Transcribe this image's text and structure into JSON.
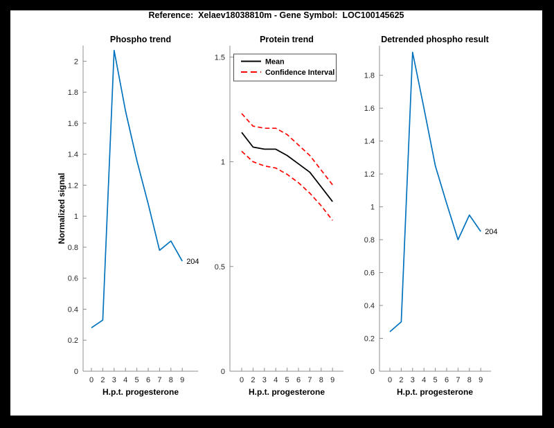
{
  "figure": {
    "title": "Reference:  Xelaev18038810m - Gene Symbol:  LOC100145625",
    "frame_color": "#000000",
    "background": "#ffffff"
  },
  "colors": {
    "line_blue": "#0072BD",
    "ci_red": "#FF0000",
    "mean_black": "#000000"
  },
  "chart_data": [
    {
      "type": "line",
      "title": "Phospho trend",
      "xlabel": "H.p.t. progesterone",
      "ylabel": "Normalized signal",
      "x": [
        0,
        2,
        3,
        4,
        5,
        6,
        7,
        8,
        9
      ],
      "x_tick_labels": [
        "0",
        "2",
        "3",
        "4",
        "5",
        "6",
        "7",
        "8",
        "9"
      ],
      "y_ticks": [
        0,
        0.2,
        0.4,
        0.6,
        0.8,
        1,
        1.2,
        1.4,
        1.6,
        1.8,
        2
      ],
      "ylim": [
        0,
        2.1
      ],
      "grid": false,
      "legend": null,
      "series": [
        {
          "name": "phospho-trend",
          "color": "#0072BD",
          "dash": false,
          "width": 1.7,
          "values": [
            0.28,
            0.33,
            2.07,
            1.68,
            1.36,
            1.08,
            0.78,
            0.84,
            0.71
          ]
        }
      ],
      "end_label": "204"
    },
    {
      "type": "line",
      "title": "Protein trend",
      "xlabel": "H.p.t. progesterone",
      "ylabel": "",
      "x": [
        0,
        2,
        3,
        4,
        5,
        6,
        7,
        8,
        9
      ],
      "x_tick_labels": [
        "0",
        "2",
        "3",
        "4",
        "5",
        "6",
        "7",
        "8",
        "9"
      ],
      "y_ticks": [
        0,
        0.5,
        1,
        1.5
      ],
      "ylim": [
        0,
        1.554
      ],
      "grid": false,
      "legend": {
        "position": "top-left",
        "entries": [
          {
            "label": "Mean",
            "color": "#000000",
            "dash": false
          },
          {
            "label": "Confidence Interval",
            "color": "#FF0000",
            "dash": true
          }
        ]
      },
      "series": [
        {
          "name": "mean",
          "color": "#000000",
          "dash": false,
          "width": 1.8,
          "values": [
            1.14,
            1.07,
            1.06,
            1.06,
            1.03,
            0.99,
            0.95,
            0.88,
            0.81
          ]
        },
        {
          "name": "ci-upper",
          "color": "#FF0000",
          "dash": true,
          "width": 1.7,
          "values": [
            1.23,
            1.17,
            1.16,
            1.16,
            1.13,
            1.08,
            1.03,
            0.96,
            0.89
          ]
        },
        {
          "name": "ci-lower",
          "color": "#FF0000",
          "dash": true,
          "width": 1.7,
          "values": [
            1.05,
            1.0,
            0.98,
            0.97,
            0.94,
            0.9,
            0.85,
            0.79,
            0.72
          ]
        }
      ],
      "end_label": null
    },
    {
      "type": "line",
      "title": "Detrended phospho result",
      "xlabel": "H.p.t. progesterone",
      "ylabel": "",
      "x": [
        0,
        2,
        3,
        4,
        5,
        6,
        7,
        8,
        9
      ],
      "x_tick_labels": [
        "0",
        "2",
        "3",
        "4",
        "5",
        "6",
        "7",
        "8",
        "9"
      ],
      "y_ticks": [
        0,
        0.2,
        0.4,
        0.6,
        0.8,
        1,
        1.2,
        1.4,
        1.6,
        1.8
      ],
      "ylim": [
        0,
        1.98
      ],
      "grid": false,
      "legend": null,
      "series": [
        {
          "name": "detrended-phospho",
          "color": "#0072BD",
          "dash": false,
          "width": 1.7,
          "values": [
            0.24,
            0.3,
            1.94,
            1.6,
            1.25,
            1.02,
            0.8,
            0.95,
            0.85
          ]
        }
      ],
      "end_label": "204"
    }
  ]
}
